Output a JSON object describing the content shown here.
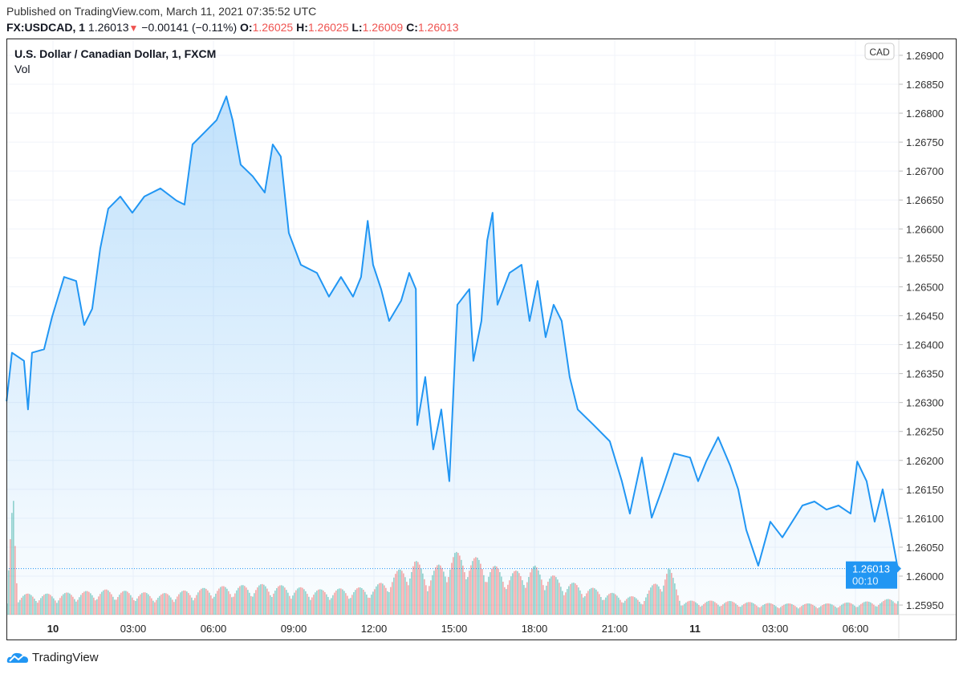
{
  "header": {
    "published": "Published on TradingView.com, March 11, 2021 07:35:52 UTC",
    "symbol": "FX:USDCAD, 1",
    "last": "1.26013",
    "change": "−0.00141 (−0.11%)",
    "o_label": "O:",
    "o": "1.26025",
    "h_label": "H:",
    "h": "1.26025",
    "l_label": "L:",
    "l": "1.26009",
    "c_label": "C:",
    "c": "1.26013"
  },
  "legend": {
    "title": "U.S. Dollar / Canadian Dollar, 1, FXCM",
    "volume": "Vol"
  },
  "footer": {
    "brand": "TradingView"
  },
  "chart_data": {
    "type": "area",
    "currency_label": "CAD",
    "last_price_label": "1.26013",
    "countdown": "00:10",
    "colors": {
      "line": "#2196f3",
      "up_volume": "#26a69a",
      "down_volume": "#ef5350"
    },
    "grid": true,
    "ylim": [
      1.2593,
      1.2692
    ],
    "y_ticks": [
      "1.26900",
      "1.26850",
      "1.26800",
      "1.26750",
      "1.26700",
      "1.26650",
      "1.26600",
      "1.26550",
      "1.26500",
      "1.26450",
      "1.26400",
      "1.26350",
      "1.26300",
      "1.26250",
      "1.26200",
      "1.26150",
      "1.26100",
      "1.26050",
      "1.26000",
      "1.25950"
    ],
    "x_ticks": [
      {
        "t": "03-10 00:00",
        "label": "10",
        "bold": true
      },
      {
        "t": "03-10 03:00",
        "label": "03:00"
      },
      {
        "t": "03-10 06:00",
        "label": "06:00"
      },
      {
        "t": "03-10 09:00",
        "label": "09:00"
      },
      {
        "t": "03-10 12:00",
        "label": "12:00"
      },
      {
        "t": "03-10 15:00",
        "label": "15:00"
      },
      {
        "t": "03-10 18:00",
        "label": "18:00"
      },
      {
        "t": "03-10 21:00",
        "label": "21:00"
      },
      {
        "t": "03-11 00:00",
        "label": "11",
        "bold": true
      },
      {
        "t": "03-11 03:00",
        "label": "03:00"
      },
      {
        "t": "03-11 06:00",
        "label": "06:00"
      }
    ],
    "series": [
      [
        "03-09 22:16",
        1.26302
      ],
      [
        "03-09 22:28",
        1.26386
      ],
      [
        "03-09 22:55",
        1.26372
      ],
      [
        "03-09 23:04",
        1.26288
      ],
      [
        "03-09 23:13",
        1.26386
      ],
      [
        "03-09 23:40",
        1.26392
      ],
      [
        "03-09 23:58",
        1.26448
      ],
      [
        "03-10 00:25",
        1.26517
      ],
      [
        "03-10 00:52",
        1.2651
      ],
      [
        "03-10 01:10",
        1.26434
      ],
      [
        "03-10 01:28",
        1.26462
      ],
      [
        "03-10 01:46",
        1.26566
      ],
      [
        "03-10 02:04",
        1.26635
      ],
      [
        "03-10 02:31",
        1.26656
      ],
      [
        "03-10 02:58",
        1.26628
      ],
      [
        "03-10 03:25",
        1.26656
      ],
      [
        "03-10 04:01",
        1.2667
      ],
      [
        "03-10 04:37",
        1.26649
      ],
      [
        "03-10 04:55",
        1.26642
      ],
      [
        "03-10 05:13",
        1.26746
      ],
      [
        "03-10 05:40",
        1.26767
      ],
      [
        "03-10 06:07",
        1.26788
      ],
      [
        "03-10 06:29",
        1.26829
      ],
      [
        "03-10 06:43",
        1.26788
      ],
      [
        "03-10 07:01",
        1.26711
      ],
      [
        "03-10 07:28",
        1.26691
      ],
      [
        "03-10 07:55",
        1.26663
      ],
      [
        "03-10 08:13",
        1.26746
      ],
      [
        "03-10 08:31",
        1.26725
      ],
      [
        "03-10 08:49",
        1.26593
      ],
      [
        "03-10 09:16",
        1.26538
      ],
      [
        "03-10 09:52",
        1.26524
      ],
      [
        "03-10 10:19",
        1.26483
      ],
      [
        "03-10 10:46",
        1.26517
      ],
      [
        "03-10 11:13",
        1.26483
      ],
      [
        "03-10 11:31",
        1.26517
      ],
      [
        "03-10 11:46",
        1.26614
      ],
      [
        "03-10 11:58",
        1.26538
      ],
      [
        "03-10 12:16",
        1.26496
      ],
      [
        "03-10 12:34",
        1.26441
      ],
      [
        "03-10 13:01",
        1.26476
      ],
      [
        "03-10 13:19",
        1.26524
      ],
      [
        "03-10 13:34",
        1.26496
      ],
      [
        "03-10 13:37",
        1.26261
      ],
      [
        "03-10 13:55",
        1.26344
      ],
      [
        "03-10 14:13",
        1.26219
      ],
      [
        "03-10 14:31",
        1.26288
      ],
      [
        "03-10 14:49",
        1.26164
      ],
      [
        "03-10 15:07",
        1.26469
      ],
      [
        "03-10 15:34",
        1.26496
      ],
      [
        "03-10 15:43",
        1.26372
      ],
      [
        "03-10 16:01",
        1.26441
      ],
      [
        "03-10 16:14",
        1.2658
      ],
      [
        "03-10 16:26",
        1.26628
      ],
      [
        "03-10 16:37",
        1.26469
      ],
      [
        "03-10 17:04",
        1.26524
      ],
      [
        "03-10 17:31",
        1.26538
      ],
      [
        "03-10 17:49",
        1.26441
      ],
      [
        "03-10 18:07",
        1.2651
      ],
      [
        "03-10 18:25",
        1.26413
      ],
      [
        "03-10 18:43",
        1.26469
      ],
      [
        "03-10 19:01",
        1.26441
      ],
      [
        "03-10 19:19",
        1.26344
      ],
      [
        "03-10 19:37",
        1.26288
      ],
      [
        "03-10 20:13",
        1.26261
      ],
      [
        "03-10 20:49",
        1.26233
      ],
      [
        "03-10 21:16",
        1.26164
      ],
      [
        "03-10 21:34",
        1.26108
      ],
      [
        "03-10 22:01",
        1.26205
      ],
      [
        "03-10 22:23",
        1.26101
      ],
      [
        "03-10 22:46",
        1.2615
      ],
      [
        "03-10 23:13",
        1.26212
      ],
      [
        "03-10 23:49",
        1.26205
      ],
      [
        "03-11 00:07",
        1.26164
      ],
      [
        "03-11 00:25",
        1.26198
      ],
      [
        "03-11 00:52",
        1.2624
      ],
      [
        "03-11 01:19",
        1.26191
      ],
      [
        "03-11 01:37",
        1.2615
      ],
      [
        "03-11 01:55",
        1.2608
      ],
      [
        "03-11 02:22",
        1.26018
      ],
      [
        "03-11 02:49",
        1.26094
      ],
      [
        "03-11 03:16",
        1.26067
      ],
      [
        "03-11 04:01",
        1.26122
      ],
      [
        "03-11 04:28",
        1.26129
      ],
      [
        "03-11 04:55",
        1.26115
      ],
      [
        "03-11 05:22",
        1.26122
      ],
      [
        "03-11 05:49",
        1.26108
      ],
      [
        "03-11 06:04",
        1.26198
      ],
      [
        "03-11 06:25",
        1.26164
      ],
      [
        "03-11 06:43",
        1.26094
      ],
      [
        "03-11 07:01",
        1.2615
      ],
      [
        "03-11 07:19",
        1.2608
      ],
      [
        "03-11 07:35",
        1.26013
      ]
    ],
    "volume_relative": [
      [
        "03-09 22:16",
        8
      ],
      [
        "03-09 22:30",
        100
      ],
      [
        "03-09 22:40",
        15
      ],
      [
        "03-10 00:00",
        15
      ],
      [
        "03-10 02:00",
        18
      ],
      [
        "03-10 04:00",
        15
      ],
      [
        "03-10 06:00",
        20
      ],
      [
        "03-10 08:00",
        22
      ],
      [
        "03-10 10:00",
        18
      ],
      [
        "03-10 12:00",
        20
      ],
      [
        "03-10 13:30",
        40
      ],
      [
        "03-10 14:00",
        30
      ],
      [
        "03-10 15:00",
        45
      ],
      [
        "03-10 16:00",
        40
      ],
      [
        "03-10 17:00",
        30
      ],
      [
        "03-10 18:00",
        35
      ],
      [
        "03-10 19:00",
        25
      ],
      [
        "03-10 20:00",
        20
      ],
      [
        "03-10 21:00",
        15
      ],
      [
        "03-10 22:00",
        12
      ],
      [
        "03-10 23:00",
        35
      ],
      [
        "03-10 23:30",
        10
      ],
      [
        "03-11 01:00",
        10
      ],
      [
        "03-11 03:00",
        8
      ],
      [
        "03-11 05:00",
        8
      ],
      [
        "03-11 07:00",
        10
      ],
      [
        "03-11 07:35",
        14
      ]
    ]
  }
}
